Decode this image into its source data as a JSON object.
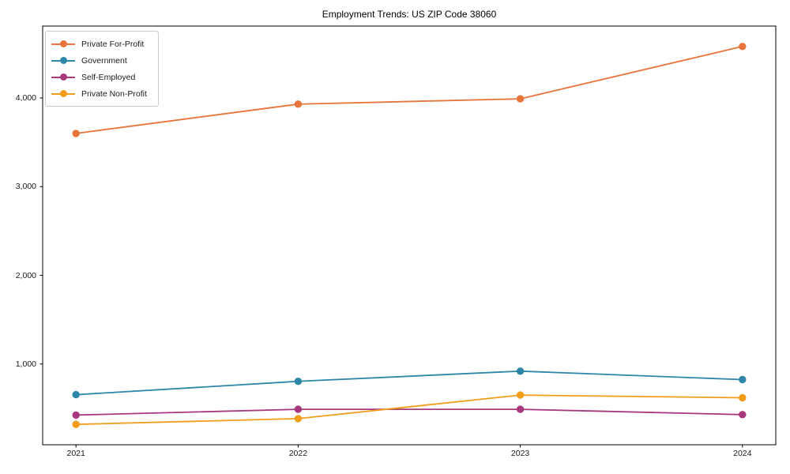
{
  "title": "Employment Trends: US ZIP Code 38060",
  "frame_color": "#000000",
  "text_color": "#1a1a1a",
  "chart_data": {
    "type": "line",
    "title": "Employment Trends: US ZIP Code 38060",
    "xlabel": "",
    "ylabel": "",
    "x": [
      2021,
      2022,
      2023,
      2024
    ],
    "x_tick_labels": [
      "2021",
      "2022",
      "2023",
      "2024"
    ],
    "y_tick_values": [
      1000,
      2000,
      3000,
      4000
    ],
    "y_tick_labels": [
      "1,000",
      "2,000",
      "3,000",
      "4,000"
    ],
    "xlim": [
      2020.85,
      2024.15
    ],
    "ylim": [
      90,
      4810
    ],
    "grid": false,
    "legend_position": "upper left",
    "series": [
      {
        "name": "Private For-Profit",
        "color": "#e8743b",
        "values": [
          3600,
          3930,
          3990,
          4580
        ]
      },
      {
        "name": "Government",
        "color": "#2e87a8",
        "values": [
          655,
          805,
          920,
          825
        ]
      },
      {
        "name": "Self-Employed",
        "color": "#a8387d",
        "values": [
          425,
          490,
          490,
          430
        ]
      },
      {
        "name": "Private Non-Profit",
        "color": "#f29c1b",
        "values": [
          320,
          385,
          650,
          620
        ]
      }
    ]
  }
}
